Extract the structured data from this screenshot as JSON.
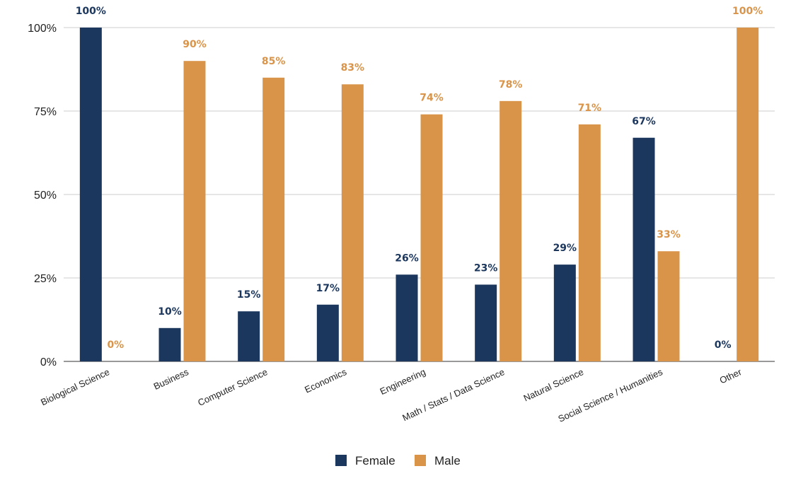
{
  "chart_data": {
    "type": "bar",
    "title": "",
    "xlabel": "",
    "ylabel": "",
    "ylim": [
      0,
      100
    ],
    "yticks": [
      "0%",
      "25%",
      "50%",
      "75%",
      "100%"
    ],
    "ytick_values": [
      0,
      25,
      50,
      75,
      100
    ],
    "categories": [
      "Biological Science",
      "Business",
      "Computer Science",
      "Economics",
      "Engineering",
      "Math / Stats / Data Science",
      "Natural Science",
      "Social Science / Humanities",
      "Other"
    ],
    "series": [
      {
        "name": "Female",
        "color": "#1c375e",
        "values": [
          100,
          10,
          15,
          17,
          26,
          23,
          29,
          67,
          0
        ],
        "labels": [
          "100%",
          "10%",
          "15%",
          "17%",
          "26%",
          "23%",
          "29%",
          "67%",
          "0%"
        ]
      },
      {
        "name": "Male",
        "color": "#d9944a",
        "values": [
          0,
          90,
          85,
          83,
          74,
          78,
          71,
          33,
          100
        ],
        "labels": [
          "0%",
          "90%",
          "85%",
          "83%",
          "74%",
          "78%",
          "71%",
          "33%",
          "100%"
        ]
      }
    ],
    "grid": true,
    "legend_position": "bottom"
  }
}
